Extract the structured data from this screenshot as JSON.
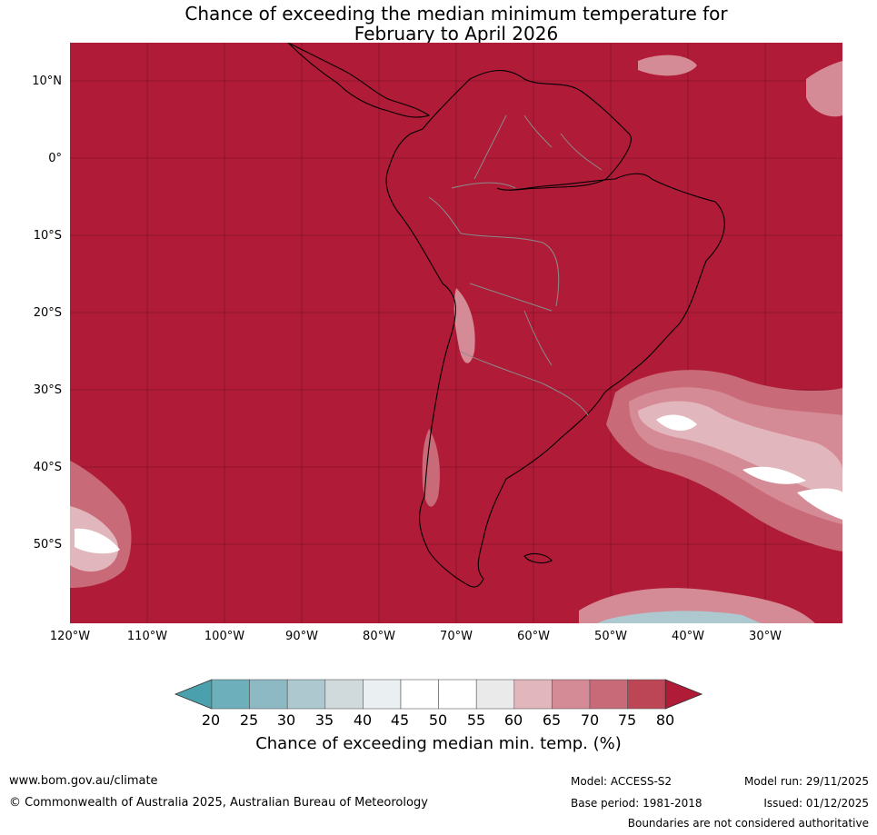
{
  "title": {
    "line1": "Chance of exceeding the median minimum temperature for",
    "line2": "February to April 2026"
  },
  "map": {
    "lat_labels": [
      "10°N",
      "0°",
      "10°S",
      "20°S",
      "30°S",
      "40°S",
      "50°S"
    ],
    "lon_labels": [
      "120°W",
      "110°W",
      "100°W",
      "90°W",
      "80°W",
      "70°W",
      "60°W",
      "50°W",
      "40°W",
      "30°W"
    ],
    "dominant_color": "#b01b37"
  },
  "colorbar": {
    "ticks": [
      "20",
      "25",
      "30",
      "35",
      "40",
      "45",
      "50",
      "55",
      "60",
      "65",
      "70",
      "75",
      "80"
    ],
    "colors": [
      "#4aa0ad",
      "#6eafbc",
      "#8db9c5",
      "#adc8ce",
      "#d0d9dc",
      "#eaf0f2",
      "#ffffff",
      "#ffffff",
      "#eaeaea",
      "#e2b6bd",
      "#d58b96",
      "#c86a77",
      "#bc4656",
      "#b01b37"
    ],
    "label": "Chance of exceeding median min. temp. (%)"
  },
  "footer": {
    "website": "www.bom.gov.au/climate",
    "copyright": "© Commonwealth of Australia 2025, Australian Bureau of Meteorology",
    "model": "Model: ACCESS-S2",
    "base_period": "Base period: 1981-2018",
    "model_run": "Model run: 29/11/2025",
    "issued": "Issued: 01/12/2025",
    "disclaimer": "Boundaries are not considered authoritative"
  }
}
